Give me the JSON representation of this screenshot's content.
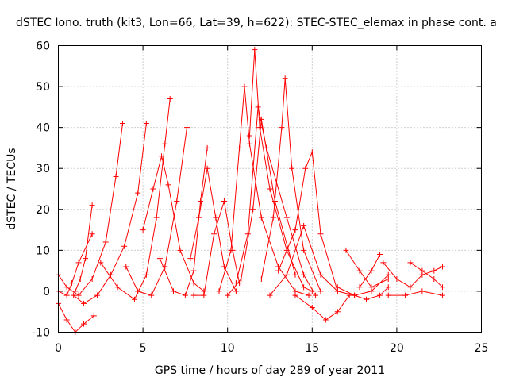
{
  "chart_data": {
    "type": "scatter",
    "title": "dSTEC Iono. truth (kit3, Lon=66, Lat=39, h=622): STEC-STEC_elemax in phase cont. a",
    "xlabel": "GPS time / hours of day 289 of year 2011",
    "ylabel": "dSTEC  / TECUs",
    "xlim": [
      0,
      25
    ],
    "ylim": [
      -10,
      60
    ],
    "x_ticks": [
      0,
      5,
      10,
      15,
      20,
      25
    ],
    "y_ticks": [
      -10,
      0,
      10,
      20,
      30,
      40,
      50,
      60
    ],
    "x_tick_labels": [
      "0",
      "5",
      "10",
      "15",
      "20",
      "25"
    ],
    "y_tick_labels": [
      "-10",
      "0",
      "10",
      "20",
      "30",
      "40",
      "50",
      "60"
    ],
    "grid": true,
    "marker": "+",
    "color": "#ff0000",
    "series": [
      {
        "x": [
          0,
          0.5,
          1,
          1.5,
          2.1
        ],
        "y": [
          -3,
          -7,
          -10,
          -8,
          -6
        ]
      },
      {
        "x": [
          0,
          0.5,
          1.2,
          2,
          2.8,
          3.4,
          3.8
        ],
        "y": [
          4,
          1,
          -1,
          3,
          12,
          28,
          41
        ]
      },
      {
        "x": [
          1.0,
          1.3,
          1.6,
          2.0
        ],
        "y": [
          0,
          3,
          8,
          21
        ]
      },
      {
        "x": [
          0.9,
          1.5,
          2.3,
          3.1,
          3.9,
          4.7,
          5.2
        ],
        "y": [
          -1,
          -3,
          -1,
          4,
          11,
          24,
          41
        ]
      },
      {
        "x": [
          0,
          0.5,
          0.8,
          1.2,
          2.0
        ],
        "y": [
          0,
          -1,
          2,
          7,
          14
        ]
      },
      {
        "x": [
          2.5,
          3.5,
          4.5,
          5.2,
          5.8,
          6.3,
          6.6
        ],
        "y": [
          7,
          1,
          -2,
          4,
          18,
          36,
          47
        ]
      },
      {
        "x": [
          4.0,
          4.7,
          5.5,
          6.3,
          7.0,
          7.6
        ],
        "y": [
          6,
          0,
          -1,
          6,
          22,
          40
        ]
      },
      {
        "x": [
          5.0,
          5.6,
          6.1,
          6.5,
          7.2,
          8.0,
          8.6
        ],
        "y": [
          15,
          25,
          33,
          26,
          10,
          2,
          0
        ]
      },
      {
        "x": [
          6.0,
          6.8,
          7.5,
          8.0,
          8.4,
          8.8
        ],
        "y": [
          8,
          0,
          -1,
          5,
          22,
          35
        ]
      },
      {
        "x": [
          7.8,
          8.3,
          8.8,
          9.3,
          9.8,
          10.5
        ],
        "y": [
          8,
          18,
          30,
          18,
          6,
          0
        ]
      },
      {
        "x": [
          8.0,
          8.6,
          9.2,
          9.8,
          10.3,
          10.7
        ],
        "y": [
          -1,
          -1,
          14,
          22,
          10,
          2
        ]
      },
      {
        "x": [
          9.5,
          10.2,
          10.7,
          11.0,
          11.3,
          12.0,
          13.0,
          14.0,
          14.8
        ],
        "y": [
          0,
          10,
          35,
          50,
          36,
          18,
          6,
          0,
          -1
        ]
      },
      {
        "x": [
          10.0,
          10.8,
          11.5,
          12.0,
          12.8,
          14.0
        ],
        "y": [
          -1,
          3,
          20,
          42,
          22,
          4
        ]
      },
      {
        "x": [
          10.5,
          11.2,
          11.8,
          12.3,
          13.5,
          14.5,
          15.2
        ],
        "y": [
          2,
          14,
          45,
          35,
          18,
          4,
          -1
        ]
      },
      {
        "x": [
          11.3,
          11.6,
          11.9,
          12.5,
          13.5,
          14.5,
          15.0
        ],
        "y": [
          38,
          59,
          40,
          25,
          10,
          1,
          0
        ]
      },
      {
        "x": [
          12.0,
          12.7,
          13.2,
          13.4,
          13.8,
          14.5,
          15.5
        ],
        "y": [
          3,
          18,
          40,
          52,
          30,
          10,
          0
        ]
      },
      {
        "x": [
          13.0,
          14.0,
          14.6,
          15.0,
          15.5,
          16.5
        ],
        "y": [
          5,
          15,
          30,
          34,
          14,
          0
        ]
      },
      {
        "x": [
          12.5,
          13.5,
          14.5,
          15.5,
          16.5,
          17.5,
          18.5,
          19.5
        ],
        "y": [
          -1,
          4,
          16,
          4,
          0,
          -1,
          0,
          4
        ]
      },
      {
        "x": [
          14.0,
          15.0,
          15.8,
          16.5,
          17.2
        ],
        "y": [
          -1,
          -4,
          -7,
          -5,
          -1
        ]
      },
      {
        "x": [
          16.5,
          17.5,
          18.2,
          19.0,
          19.5
        ],
        "y": [
          1,
          -1,
          -2,
          -1,
          1
        ]
      },
      {
        "x": [
          17.0,
          17.8,
          18.5,
          19.5
        ],
        "y": [
          10,
          5,
          1,
          3
        ]
      },
      {
        "x": [
          17.8,
          18.5,
          19.0
        ],
        "y": [
          1,
          5,
          9
        ]
      },
      {
        "x": [
          19.2,
          20.0,
          20.8,
          21.5,
          22.2,
          22.7
        ],
        "y": [
          7,
          3,
          1,
          4,
          5,
          6
        ]
      },
      {
        "x": [
          19.5,
          20.5,
          21.5,
          22.7
        ],
        "y": [
          -1,
          -1,
          0,
          -1
        ]
      },
      {
        "x": [
          20.8,
          21.5,
          22.2,
          22.7
        ],
        "y": [
          7,
          5,
          3,
          1
        ]
      }
    ]
  }
}
